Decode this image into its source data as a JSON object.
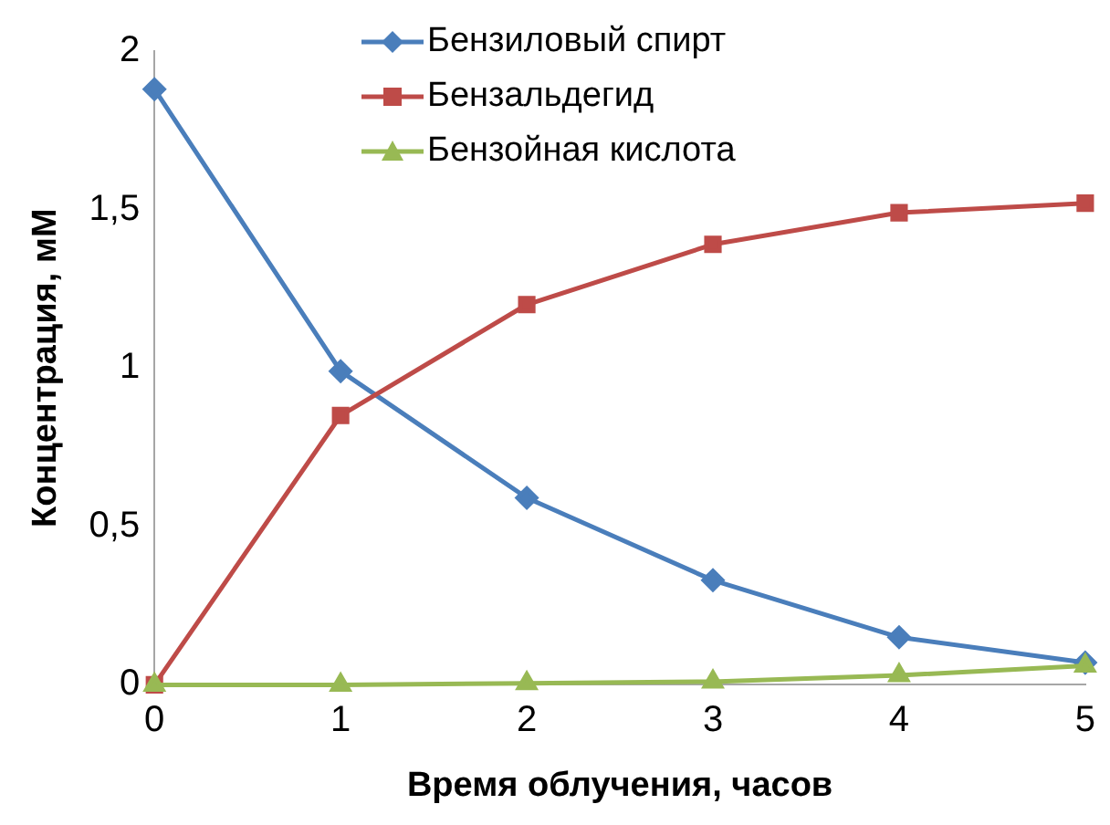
{
  "chart_data": {
    "type": "line",
    "xlabel": "Время облучения, часов",
    "ylabel": "Концентрация, мМ",
    "x": [
      0,
      1,
      2,
      3,
      4,
      5
    ],
    "xlim": [
      0,
      5
    ],
    "xticks": [
      0,
      1,
      2,
      3,
      4,
      5
    ],
    "ylim": [
      0,
      2
    ],
    "yticks": [
      {
        "value": 0,
        "label": "0"
      },
      {
        "value": 0.5,
        "label": "0,5"
      },
      {
        "value": 1,
        "label": "1"
      },
      {
        "value": 1.5,
        "label": "1,5"
      },
      {
        "value": 2,
        "label": "2"
      }
    ],
    "grid": false,
    "legend": "top",
    "line_style": "solid",
    "series": [
      {
        "name": "Бензиловый спирт",
        "color": "#4a7ebb",
        "marker": "diamond",
        "values": [
          1.88,
          0.99,
          0.59,
          0.33,
          0.15,
          0.07
        ]
      },
      {
        "name": "Бензальдегид",
        "color": "#be4b48",
        "marker": "square",
        "values": [
          0,
          0.85,
          1.2,
          1.39,
          1.49,
          1.52
        ]
      },
      {
        "name": "Бензойная кислота",
        "color": "#98b954",
        "marker": "triangle",
        "values": [
          0,
          0,
          0.005,
          0.01,
          0.03,
          0.06
        ]
      }
    ]
  }
}
